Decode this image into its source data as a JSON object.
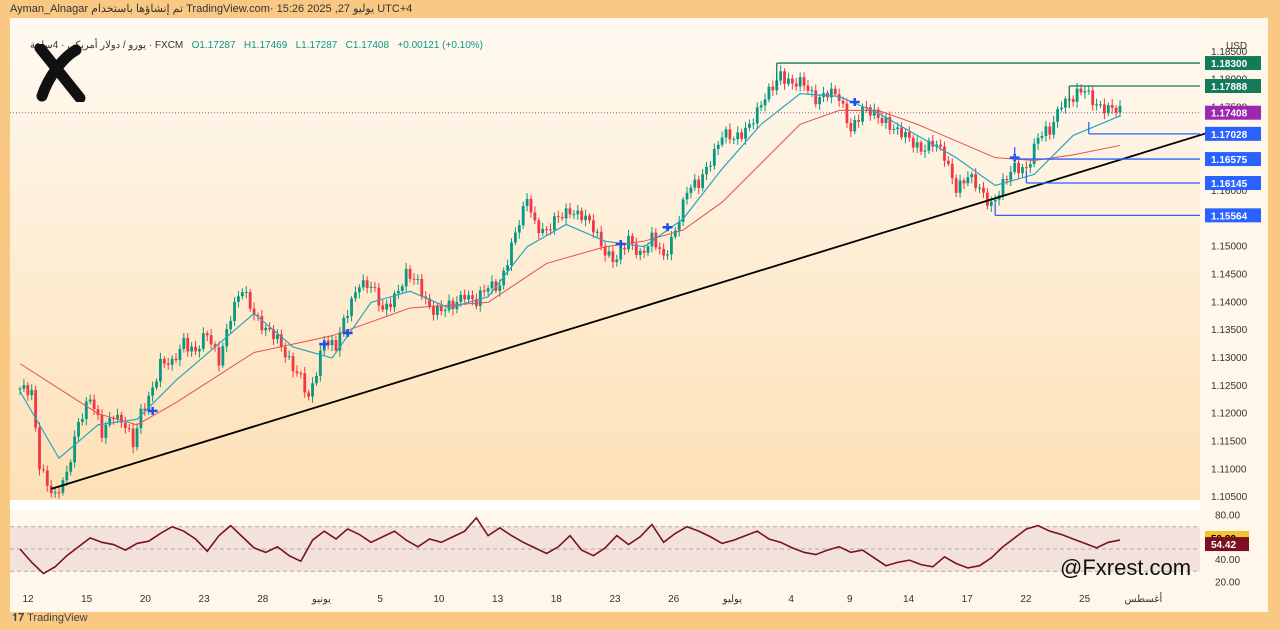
{
  "header": {
    "top_text": "Ayman_Alnagar تم إنشاؤها باستخدام TradingView.com· 15:26 2025 ,27 يوليو UTC+4",
    "symbol": "يورو / دولار أمريكي · 4ساعة · FXCM",
    "ohlc": {
      "o": "O1.17287",
      "h": "H1.17469",
      "l": "L1.17287",
      "c": "C1.17408",
      "change": "+0.00121 (+0.10%)"
    }
  },
  "currency_label": "USD",
  "watermark": "@Fxrest.com",
  "footer": {
    "brand": "TradingView"
  },
  "colors": {
    "background": "#f9c883",
    "panel": "#fff7ea",
    "bull": "#089981",
    "bear": "#f23645",
    "ema_fast": "#26a6c0",
    "ema_slow": "#e35050",
    "rsi": "#7a1020",
    "level_green": "#137a5a",
    "level_blue": "#2962ff",
    "current_price": "#9c27b0",
    "trendline": "#000000"
  },
  "chart_data": [
    {
      "type": "candlestick",
      "symbol": "EURUSD 4H",
      "y_ticks": [
        "1.18500",
        "1.18000",
        "1.17500",
        "1.17000",
        "1.16500",
        "1.16000",
        "1.15500",
        "1.15000",
        "1.14500",
        "1.14000",
        "1.13500",
        "1.13000",
        "1.12500",
        "1.12000",
        "1.11500",
        "1.11000",
        "1.10500"
      ],
      "ylim": [
        1.1045,
        1.1875
      ],
      "x_ticks": [
        "12",
        "15",
        "20",
        "23",
        "28",
        "يونيو",
        "5",
        "10",
        "13",
        "18",
        "23",
        "26",
        "يوليو",
        "4",
        "9",
        "14",
        "17",
        "22",
        "25",
        "أغسطس"
      ],
      "close_path": [
        [
          0,
          1.1245
        ],
        [
          3,
          1.1232
        ],
        [
          5,
          1.111
        ],
        [
          9,
          1.105
        ],
        [
          12,
          1.1085
        ],
        [
          15,
          1.119
        ],
        [
          18,
          1.123
        ],
        [
          21,
          1.116
        ],
        [
          24,
          1.1205
        ],
        [
          27,
          1.118
        ],
        [
          29,
          1.114
        ],
        [
          31,
          1.12
        ],
        [
          34,
          1.125
        ],
        [
          36,
          1.129
        ],
        [
          39,
          1.1285
        ],
        [
          42,
          1.1335
        ],
        [
          45,
          1.131
        ],
        [
          48,
          1.134
        ],
        [
          51,
          1.13
        ],
        [
          54,
          1.1375
        ],
        [
          57,
          1.142
        ],
        [
          60,
          1.1385
        ],
        [
          63,
          1.135
        ],
        [
          66,
          1.133
        ],
        [
          69,
          1.13
        ],
        [
          72,
          1.1265
        ],
        [
          74,
          1.122
        ],
        [
          76,
          1.1275
        ],
        [
          78,
          1.134
        ],
        [
          81,
          1.132
        ],
        [
          84,
          1.138
        ],
        [
          87,
          1.144
        ],
        [
          90,
          1.143
        ],
        [
          93,
          1.138
        ],
        [
          96,
          1.1415
        ],
        [
          99,
          1.145
        ],
        [
          102,
          1.143
        ],
        [
          105,
          1.1395
        ],
        [
          108,
          1.1385
        ],
        [
          111,
          1.139
        ],
        [
          114,
          1.142
        ],
        [
          117,
          1.14
        ],
        [
          120,
          1.1425
        ],
        [
          123,
          1.1435
        ],
        [
          126,
          1.15
        ],
        [
          129,
          1.156
        ],
        [
          130,
          1.159
        ],
        [
          132,
          1.1545
        ],
        [
          135,
          1.1525
        ],
        [
          138,
          1.155
        ],
        [
          141,
          1.157
        ],
        [
          144,
          1.1555
        ],
        [
          147,
          1.153
        ],
        [
          150,
          1.1495
        ],
        [
          153,
          1.1475
        ],
        [
          156,
          1.151
        ],
        [
          159,
          1.149
        ],
        [
          162,
          1.1515
        ],
        [
          165,
          1.1475
        ],
        [
          168,
          1.1535
        ],
        [
          171,
          1.16
        ],
        [
          174,
          1.161
        ],
        [
          177,
          1.166
        ],
        [
          180,
          1.17
        ],
        [
          183,
          1.169
        ],
        [
          186,
          1.1715
        ],
        [
          189,
          1.174
        ],
        [
          192,
          1.1775
        ],
        [
          195,
          1.1815
        ],
        [
          198,
          1.179
        ],
        [
          201,
          1.179
        ],
        [
          204,
          1.177
        ],
        [
          207,
          1.1775
        ],
        [
          210,
          1.1765
        ],
        [
          213,
          1.1715
        ],
        [
          216,
          1.1745
        ],
        [
          219,
          1.1735
        ],
        [
          222,
          1.173
        ],
        [
          225,
          1.1705
        ],
        [
          228,
          1.169
        ],
        [
          231,
          1.168
        ],
        [
          234,
          1.1685
        ],
        [
          237,
          1.166
        ],
        [
          240,
          1.161
        ],
        [
          243,
          1.1625
        ],
        [
          246,
          1.16
        ],
        [
          249,
          1.158
        ],
        [
          252,
          1.161
        ],
        [
          255,
          1.164
        ],
        [
          258,
          1.1645
        ],
        [
          261,
          1.1695
        ],
        [
          264,
          1.1705
        ],
        [
          267,
          1.1765
        ],
        [
          270,
          1.1765
        ],
        [
          273,
          1.178
        ],
        [
          276,
          1.176
        ],
        [
          279,
          1.1745
        ],
        [
          282,
          1.1741
        ]
      ],
      "ema_fast": [
        [
          0,
          1.124
        ],
        [
          10,
          1.112
        ],
        [
          20,
          1.118
        ],
        [
          30,
          1.119
        ],
        [
          40,
          1.126
        ],
        [
          50,
          1.132
        ],
        [
          60,
          1.138
        ],
        [
          70,
          1.132
        ],
        [
          80,
          1.13
        ],
        [
          90,
          1.14
        ],
        [
          100,
          1.142
        ],
        [
          110,
          1.139
        ],
        [
          120,
          1.141
        ],
        [
          130,
          1.15
        ],
        [
          140,
          1.154
        ],
        [
          150,
          1.151
        ],
        [
          160,
          1.15
        ],
        [
          170,
          1.155
        ],
        [
          180,
          1.164
        ],
        [
          190,
          1.172
        ],
        [
          200,
          1.1775
        ],
        [
          210,
          1.177
        ],
        [
          220,
          1.174
        ],
        [
          230,
          1.17
        ],
        [
          240,
          1.166
        ],
        [
          250,
          1.161
        ],
        [
          260,
          1.163
        ],
        [
          270,
          1.17
        ],
        [
          282,
          1.1735
        ]
      ],
      "ema_slow": [
        [
          0,
          1.129
        ],
        [
          20,
          1.12
        ],
        [
          30,
          1.118
        ],
        [
          40,
          1.122
        ],
        [
          60,
          1.131
        ],
        [
          80,
          1.134
        ],
        [
          100,
          1.139
        ],
        [
          120,
          1.14
        ],
        [
          135,
          1.147
        ],
        [
          150,
          1.15
        ],
        [
          160,
          1.151
        ],
        [
          170,
          1.153
        ],
        [
          180,
          1.158
        ],
        [
          190,
          1.165
        ],
        [
          200,
          1.172
        ],
        [
          210,
          1.1745
        ],
        [
          220,
          1.1745
        ],
        [
          230,
          1.172
        ],
        [
          240,
          1.169
        ],
        [
          250,
          1.166
        ],
        [
          260,
          1.1655
        ],
        [
          270,
          1.1665
        ],
        [
          282,
          1.1682
        ]
      ],
      "levels": [
        {
          "value": "1.18300",
          "color": "level_green"
        },
        {
          "value": "1.17888",
          "color": "level_green"
        },
        {
          "value": "1.17408",
          "color": "current_price"
        },
        {
          "value": "1.17028",
          "color": "level_blue"
        },
        {
          "value": "1.16575",
          "color": "level_blue"
        },
        {
          "value": "1.16145",
          "color": "level_blue"
        },
        {
          "value": "1.15564",
          "color": "level_blue"
        }
      ],
      "trendline": [
        [
          8,
          1.1065
        ],
        [
          282,
          1.1671
        ]
      ],
      "signal_markers": [
        [
          34,
          1.1205
        ],
        [
          78,
          1.1325
        ],
        [
          84,
          1.1345
        ],
        [
          154,
          1.1505
        ],
        [
          166,
          1.1535
        ],
        [
          214,
          1.176
        ],
        [
          255,
          1.166
        ]
      ]
    },
    {
      "type": "line",
      "name": "RSI",
      "y_ticks": [
        "80.00",
        "40.00",
        "20.00"
      ],
      "ylim": [
        15,
        85
      ],
      "bands": [
        70,
        50,
        30
      ],
      "current_labels": [
        "59.89",
        "54.42"
      ],
      "values": [
        [
          0,
          50
        ],
        [
          3,
          38
        ],
        [
          6,
          28
        ],
        [
          9,
          34
        ],
        [
          12,
          44
        ],
        [
          15,
          52
        ],
        [
          18,
          60
        ],
        [
          21,
          56
        ],
        [
          24,
          54
        ],
        [
          27,
          49
        ],
        [
          30,
          55
        ],
        [
          33,
          57
        ],
        [
          36,
          64
        ],
        [
          39,
          70
        ],
        [
          42,
          66
        ],
        [
          45,
          59
        ],
        [
          48,
          48
        ],
        [
          51,
          62
        ],
        [
          54,
          71
        ],
        [
          57,
          61
        ],
        [
          60,
          51
        ],
        [
          63,
          47
        ],
        [
          66,
          52
        ],
        [
          69,
          44
        ],
        [
          72,
          39
        ],
        [
          75,
          58
        ],
        [
          78,
          66
        ],
        [
          81,
          59
        ],
        [
          84,
          68
        ],
        [
          87,
          63
        ],
        [
          90,
          56
        ],
        [
          93,
          61
        ],
        [
          96,
          66
        ],
        [
          99,
          58
        ],
        [
          102,
          52
        ],
        [
          105,
          59
        ],
        [
          108,
          56
        ],
        [
          111,
          61
        ],
        [
          114,
          66
        ],
        [
          117,
          78
        ],
        [
          120,
          62
        ],
        [
          123,
          69
        ],
        [
          126,
          62
        ],
        [
          129,
          56
        ],
        [
          132,
          51
        ],
        [
          135,
          46
        ],
        [
          138,
          52
        ],
        [
          141,
          62
        ],
        [
          144,
          49
        ],
        [
          147,
          44
        ],
        [
          150,
          51
        ],
        [
          153,
          62
        ],
        [
          156,
          54
        ],
        [
          159,
          61
        ],
        [
          162,
          72
        ],
        [
          165,
          56
        ],
        [
          168,
          64
        ],
        [
          171,
          70
        ],
        [
          174,
          66
        ],
        [
          177,
          61
        ],
        [
          180,
          55
        ],
        [
          183,
          58
        ],
        [
          186,
          62
        ],
        [
          189,
          66
        ],
        [
          192,
          59
        ],
        [
          195,
          56
        ],
        [
          198,
          51
        ],
        [
          201,
          47
        ],
        [
          204,
          45
        ],
        [
          207,
          49
        ],
        [
          210,
          52
        ],
        [
          213,
          47
        ],
        [
          216,
          49
        ],
        [
          219,
          42
        ],
        [
          222,
          35
        ],
        [
          225,
          38
        ],
        [
          228,
          40
        ],
        [
          231,
          36
        ],
        [
          234,
          34
        ],
        [
          237,
          43
        ],
        [
          240,
          37
        ],
        [
          243,
          33
        ],
        [
          246,
          35
        ],
        [
          249,
          42
        ],
        [
          252,
          52
        ],
        [
          255,
          60
        ],
        [
          258,
          68
        ],
        [
          261,
          71
        ],
        [
          264,
          66
        ],
        [
          267,
          63
        ],
        [
          270,
          59
        ],
        [
          273,
          55
        ],
        [
          276,
          51
        ],
        [
          279,
          56
        ],
        [
          282,
          58
        ]
      ]
    }
  ]
}
